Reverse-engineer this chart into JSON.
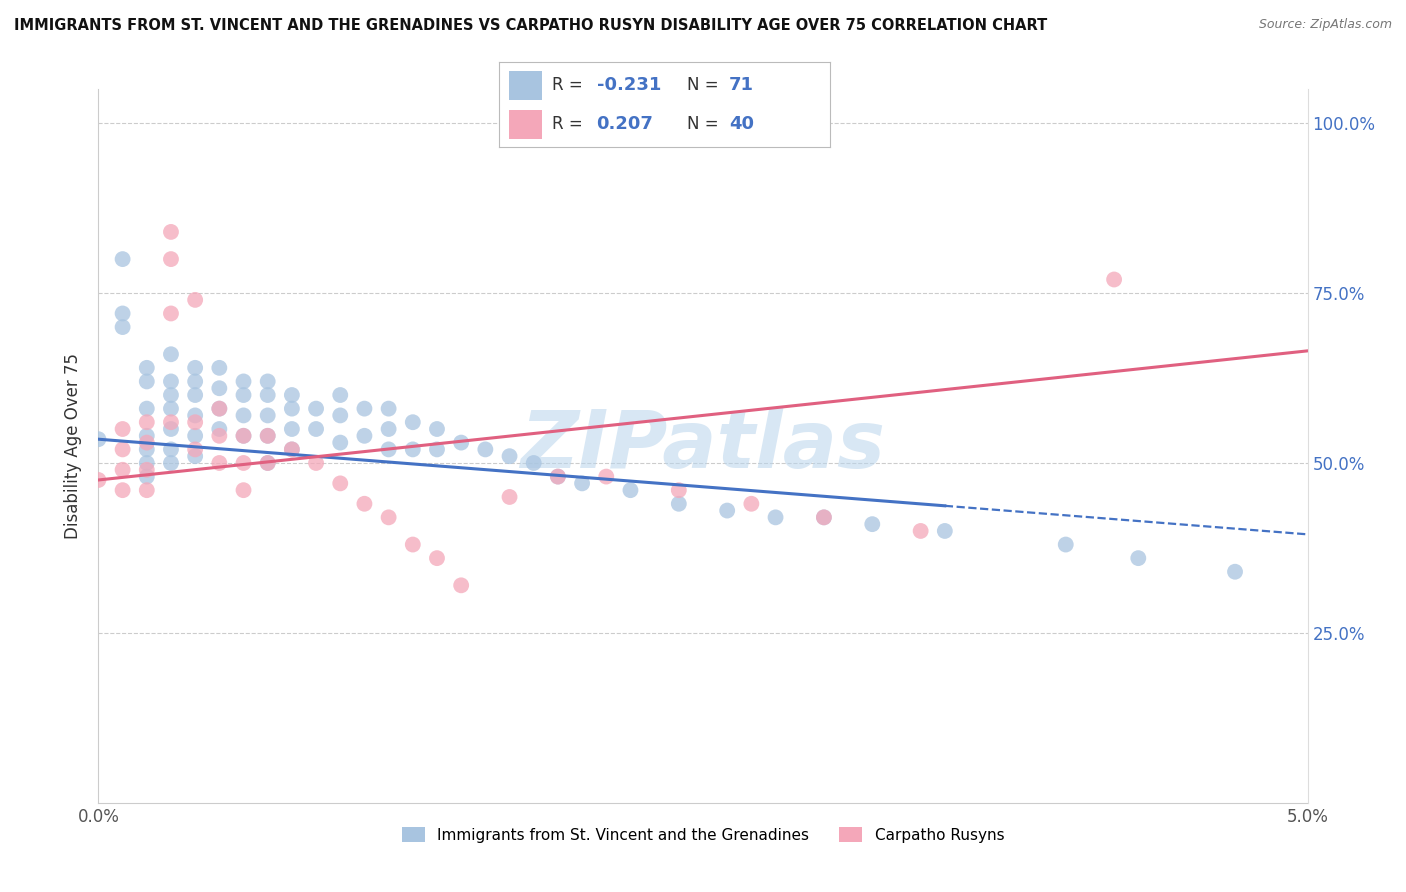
{
  "title": "IMMIGRANTS FROM ST. VINCENT AND THE GRENADINES VS CARPATHO RUSYN DISABILITY AGE OVER 75 CORRELATION CHART",
  "source": "Source: ZipAtlas.com",
  "xlabel_blue": "Immigrants from St. Vincent and the Grenadines",
  "xlabel_pink": "Carpatho Rusyns",
  "ylabel": "Disability Age Over 75",
  "xmin": 0.0,
  "xmax": 0.05,
  "ymin": 0.0,
  "ymax": 1.05,
  "yticks": [
    0.25,
    0.5,
    0.75,
    1.0
  ],
  "ytick_labels": [
    "25.0%",
    "50.0%",
    "75.0%",
    "100.0%"
  ],
  "xticks": [
    0.0,
    0.05
  ],
  "xtick_labels": [
    "0.0%",
    "5.0%"
  ],
  "R_blue": -0.231,
  "N_blue": 71,
  "R_pink": 0.207,
  "N_pink": 40,
  "blue_color": "#a8c4e0",
  "pink_color": "#f4a7b9",
  "line_blue": "#4472c4",
  "line_pink": "#e06080",
  "blue_line_solid_end": 0.035,
  "blue_intercept": 0.535,
  "blue_slope": -2.8,
  "pink_intercept": 0.475,
  "pink_slope": 3.8,
  "watermark_text": "ZIPatlas",
  "watermark_color": "#b8d4ec",
  "background_color": "#ffffff"
}
